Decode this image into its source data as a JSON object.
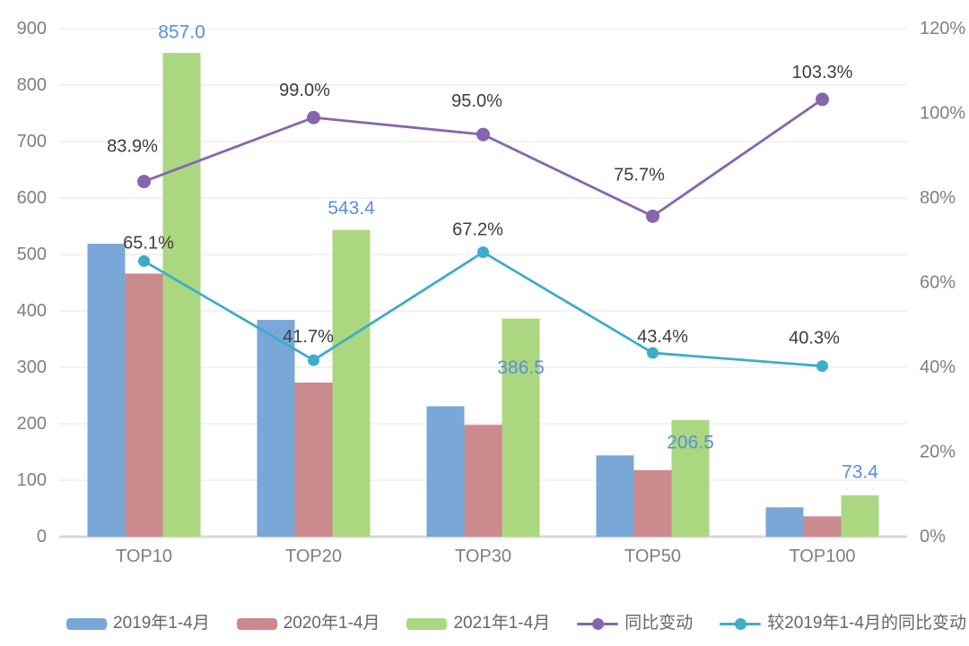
{
  "chart_data": {
    "type": "combo-bar-line",
    "categories": [
      "TOP10",
      "TOP20",
      "TOP30",
      "TOP50",
      "TOP100"
    ],
    "bar_series": [
      {
        "name": "2019年1-4月",
        "color": "#79A7D8",
        "axis": "left",
        "values": [
          519,
          384,
          231,
          144,
          52
        ]
      },
      {
        "name": "2020年1-4月",
        "color": "#CB8A8C",
        "axis": "left",
        "values": [
          466,
          273,
          198,
          118,
          36
        ]
      },
      {
        "name": "2021年1-4月",
        "color": "#ABD781",
        "axis": "left",
        "values": [
          857.0,
          543.4,
          386.5,
          206.5,
          73.4
        ],
        "data_labels": [
          "857.0",
          "543.4",
          "386.5",
          "206.5",
          "73.4"
        ],
        "data_label_color": "#5B8FD6"
      }
    ],
    "line_series": [
      {
        "name": "同比变动",
        "color": "#8765AE",
        "axis": "right",
        "values": [
          83.9,
          99.0,
          95.0,
          75.7,
          103.3
        ],
        "data_labels": [
          "83.9%",
          "99.0%",
          "95.0%",
          "75.7%",
          "103.3%"
        ]
      },
      {
        "name": "较2019年1-4月的同比变动",
        "color": "#3DACCA",
        "axis": "right",
        "values": [
          65.1,
          41.7,
          67.2,
          43.4,
          40.3
        ],
        "data_labels": [
          "65.1%",
          "41.7%",
          "67.2%",
          "43.4%",
          "40.3%"
        ]
      }
    ],
    "left_axis": {
      "min": 0,
      "max": 900,
      "step": 100,
      "tick_labels": [
        "0",
        "100",
        "200",
        "300",
        "400",
        "500",
        "600",
        "700",
        "800",
        "900"
      ]
    },
    "right_axis": {
      "min": 0,
      "max": 120,
      "step": 20,
      "tick_labels": [
        "0%",
        "20%",
        "40%",
        "60%",
        "80%",
        "100%",
        "120%"
      ]
    },
    "grid": true,
    "legend_position": "bottom",
    "colors": {
      "percent_label_text": "#3D3D3D",
      "axis_text": "#7F7F7F",
      "gridline": "#E9E9E9",
      "axis_line": "#D9D9D9",
      "legend_text": "#666666",
      "background": "#FFFFFF"
    }
  }
}
